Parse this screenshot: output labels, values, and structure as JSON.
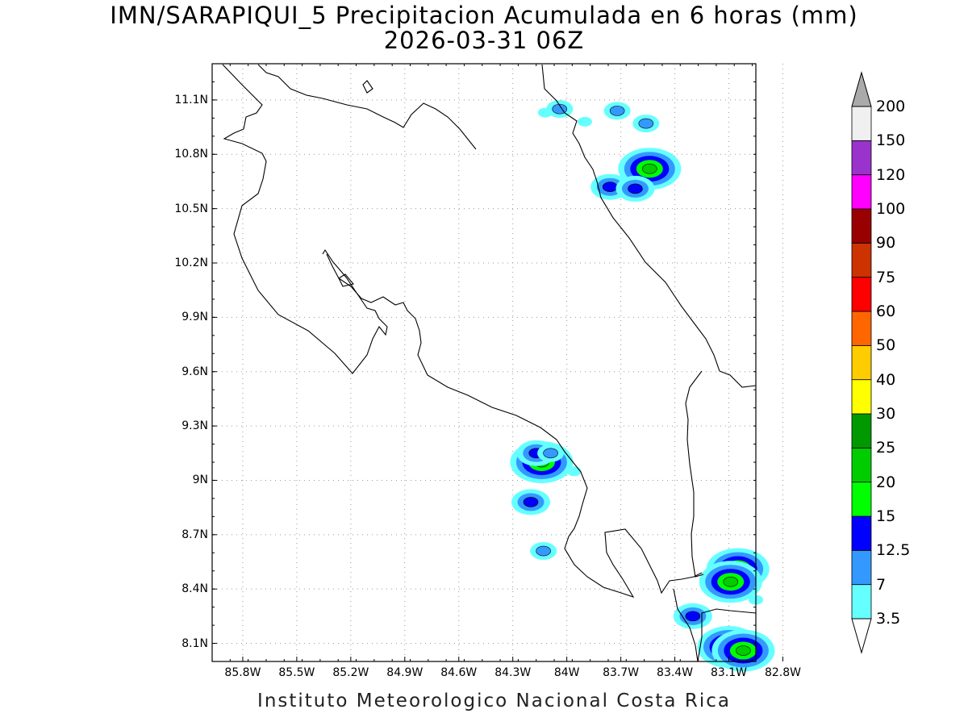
{
  "title": {
    "line1": "IMN/SARAPIQUI_5 Precipitacion Acumulada en 6 horas (mm)",
    "line2": "2026-03-31 06Z"
  },
  "axes": {
    "lat_labels": [
      "11.1N",
      "10.8N",
      "10.5N",
      "10.2N",
      "9.9N",
      "9.6N",
      "9.3N",
      "9N",
      "8.7N",
      "8.4N",
      "8.1N"
    ],
    "lon_labels": [
      "85.8W",
      "85.5W",
      "85.2W",
      "84.9W",
      "84.6W",
      "84.3W",
      "84W",
      "83.7W",
      "83.4W",
      "83.1W",
      "82.8W"
    ],
    "lat_range": [
      8.0,
      11.3
    ],
    "lon_range": [
      -85.97,
      -82.95
    ],
    "grid": "dotted"
  },
  "colorbar": {
    "labels": [
      "3.5",
      "7",
      "12.5",
      "15",
      "20",
      "25",
      "30",
      "40",
      "50",
      "60",
      "75",
      "90",
      "100",
      "120",
      "150",
      "200"
    ],
    "colors": [
      "#66ffff",
      "#3399ff",
      "#0000ff",
      "#00ff00",
      "#00cc00",
      "#009900",
      "#ffff00",
      "#ffcc00",
      "#ff6600",
      "#ff0000",
      "#cc3300",
      "#990000",
      "#ff00ff",
      "#9933cc",
      "#f0f0f0"
    ],
    "arrow_top_color": "#aaaaaa"
  },
  "precip_cells": [
    {
      "lon": -84.04,
      "lat": 11.05,
      "mm": 7
    },
    {
      "lon": -84.12,
      "lat": 11.03,
      "mm": 3.5
    },
    {
      "lon": -83.9,
      "lat": 10.98,
      "mm": 3.5
    },
    {
      "lon": -83.72,
      "lat": 11.04,
      "mm": 7
    },
    {
      "lon": -83.56,
      "lat": 10.97,
      "mm": 7
    },
    {
      "lon": -83.54,
      "lat": 10.72,
      "mm": 20
    },
    {
      "lon": -83.76,
      "lat": 10.62,
      "mm": 12.5
    },
    {
      "lon": -83.62,
      "lat": 10.61,
      "mm": 12.5
    },
    {
      "lon": -84.14,
      "lat": 9.1,
      "mm": 20
    },
    {
      "lon": -84.17,
      "lat": 9.15,
      "mm": 12.5
    },
    {
      "lon": -84.09,
      "lat": 9.15,
      "mm": 7
    },
    {
      "lon": -84.2,
      "lat": 8.88,
      "mm": 12.5
    },
    {
      "lon": -83.96,
      "lat": 9.05,
      "mm": 3.5
    },
    {
      "lon": -84.13,
      "lat": 8.61,
      "mm": 7
    },
    {
      "lon": -83.05,
      "lat": 8.51,
      "mm": 20
    },
    {
      "lon": -83.09,
      "lat": 8.44,
      "mm": 20
    },
    {
      "lon": -83.3,
      "lat": 8.25,
      "mm": 12.5
    },
    {
      "lon": -83.1,
      "lat": 8.08,
      "mm": 20
    },
    {
      "lon": -83.02,
      "lat": 8.06,
      "mm": 20
    },
    {
      "lon": -82.95,
      "lat": 8.34,
      "mm": 3.5
    }
  ],
  "footer": "Instituto Meteorologico Nacional Costa Rica"
}
